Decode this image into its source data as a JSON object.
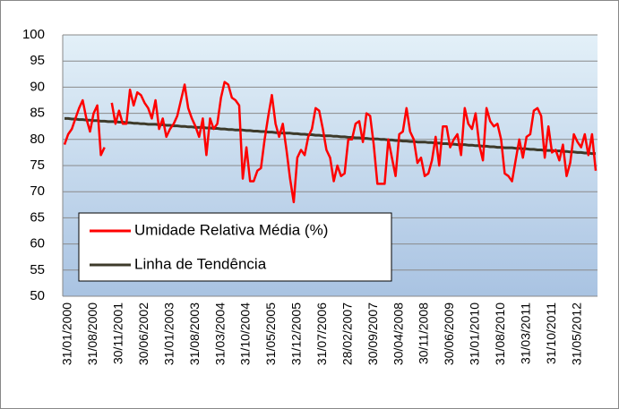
{
  "chart_data": {
    "type": "line",
    "categories": [
      "31/01/2000",
      null,
      null,
      null,
      null,
      null,
      null,
      "31/08/2000",
      null,
      null,
      null,
      null,
      null,
      null,
      "30/11/2001",
      null,
      null,
      null,
      null,
      null,
      null,
      "30/06/2002",
      null,
      null,
      null,
      null,
      null,
      null,
      "31/01/2003",
      null,
      null,
      null,
      null,
      null,
      null,
      "31/08/2003",
      null,
      null,
      null,
      null,
      null,
      null,
      "31/03/2004",
      null,
      null,
      null,
      null,
      null,
      null,
      "31/10/2004",
      null,
      null,
      null,
      null,
      null,
      null,
      "31/05/2005",
      null,
      null,
      null,
      null,
      null,
      null,
      "31/12/2005",
      null,
      null,
      null,
      null,
      null,
      null,
      "31/07/2006",
      null,
      null,
      null,
      null,
      null,
      null,
      "28/02/2007",
      null,
      null,
      null,
      null,
      null,
      null,
      "30/09/2007",
      null,
      null,
      null,
      null,
      null,
      null,
      "30/04/2008",
      null,
      null,
      null,
      null,
      null,
      null,
      "30/11/2008",
      null,
      null,
      null,
      null,
      null,
      null,
      "30/06/2009",
      null,
      null,
      null,
      null,
      null,
      null,
      "31/01/2010",
      null,
      null,
      null,
      null,
      null,
      null,
      "31/08/2010",
      null,
      null,
      null,
      null,
      null,
      null,
      "31/03/2011",
      null,
      null,
      null,
      null,
      null,
      null,
      "31/10/2011",
      null,
      null,
      null,
      null,
      null,
      null,
      "31/05/2012",
      null,
      null,
      null,
      null,
      null,
      null
    ],
    "series": [
      {
        "name": "Umidade Relativa Média (%)",
        "color": "#ff0000",
        "values": [
          79,
          81,
          82,
          84,
          86,
          87.5,
          84,
          81.5,
          85,
          86.5,
          77,
          78.5,
          null,
          87,
          83,
          85.5,
          83,
          83,
          89.5,
          86.5,
          89,
          88.5,
          87,
          86,
          84,
          87.5,
          82,
          84,
          80.5,
          82,
          83,
          84.5,
          87.5,
          90.5,
          86,
          84,
          82.5,
          80.5,
          84,
          77,
          84,
          82,
          83,
          88,
          91,
          90.5,
          88,
          87.5,
          86.5,
          72.5,
          78.5,
          72,
          72,
          74,
          74.5,
          80,
          84.5,
          88.5,
          83,
          80.5,
          83,
          78,
          72.5,
          68,
          76.5,
          78,
          77,
          80.5,
          82,
          86,
          85.5,
          82,
          78,
          76.5,
          72,
          75,
          73,
          73.5,
          80,
          80,
          83,
          83.5,
          79.5,
          85,
          84.5,
          79,
          71.5,
          71.5,
          71.5,
          80,
          76.5,
          73,
          81,
          81.5,
          86,
          81.5,
          80,
          75.5,
          76.5,
          73,
          73.5,
          76,
          80.5,
          75,
          82.5,
          82.5,
          78.5,
          80,
          81,
          77,
          86,
          83,
          82,
          85,
          79,
          76,
          86,
          83.5,
          82.5,
          83,
          80,
          73.5,
          73,
          72,
          76,
          80,
          76.5,
          80.5,
          81,
          85.5,
          86,
          84.5,
          76.5,
          82.5,
          77.5,
          78,
          76,
          79,
          73,
          75.5,
          81,
          79.5,
          78.5,
          81,
          77,
          81,
          74
        ]
      },
      {
        "name": "Linha de Tendência",
        "color": "#3d3a2a",
        "values": [
          84.0,
          84.0,
          83.9,
          83.9,
          83.8,
          83.8,
          83.7,
          83.7,
          83.6,
          83.6,
          83.5,
          83.5,
          83.4,
          83.4,
          83.4,
          83.3,
          83.3,
          83.2,
          83.2,
          83.1,
          83.1,
          83.0,
          83.0,
          82.9,
          82.9,
          82.9,
          82.8,
          82.8,
          82.7,
          82.7,
          82.6,
          82.6,
          82.5,
          82.5,
          82.4,
          82.4,
          82.3,
          82.3,
          82.3,
          82.2,
          82.2,
          82.1,
          82.1,
          82.0,
          82.0,
          81.9,
          81.9,
          81.8,
          81.8,
          81.8,
          81.7,
          81.7,
          81.6,
          81.6,
          81.5,
          81.5,
          81.4,
          81.4,
          81.3,
          81.3,
          81.2,
          81.2,
          81.2,
          81.1,
          81.1,
          81.0,
          81.0,
          80.9,
          80.9,
          80.8,
          80.8,
          80.7,
          80.7,
          80.7,
          80.6,
          80.6,
          80.5,
          80.5,
          80.4,
          80.4,
          80.3,
          80.3,
          80.2,
          80.2,
          80.1,
          80.1,
          80.1,
          80.0,
          80.0,
          79.9,
          79.9,
          79.8,
          79.8,
          79.7,
          79.7,
          79.6,
          79.6,
          79.5,
          79.5,
          79.5,
          79.4,
          79.4,
          79.3,
          79.3,
          79.2,
          79.2,
          79.1,
          79.1,
          79.0,
          79.0,
          79.0,
          78.9,
          78.9,
          78.8,
          78.8,
          78.7,
          78.7,
          78.6,
          78.6,
          78.5,
          78.5,
          78.4,
          78.4,
          78.4,
          78.3,
          78.3,
          78.2,
          78.2,
          78.1,
          78.1,
          78.0,
          78.0,
          77.9,
          77.9,
          77.9,
          77.8,
          77.8,
          77.7,
          77.7,
          77.6,
          77.6,
          77.5,
          77.5,
          77.4,
          77.4,
          77.3,
          77.3
        ]
      }
    ],
    "ylim": [
      50,
      100
    ],
    "yticks": [
      50,
      55,
      60,
      65,
      70,
      75,
      80,
      85,
      90,
      95,
      100
    ],
    "grid": true,
    "legend": "lower left"
  }
}
